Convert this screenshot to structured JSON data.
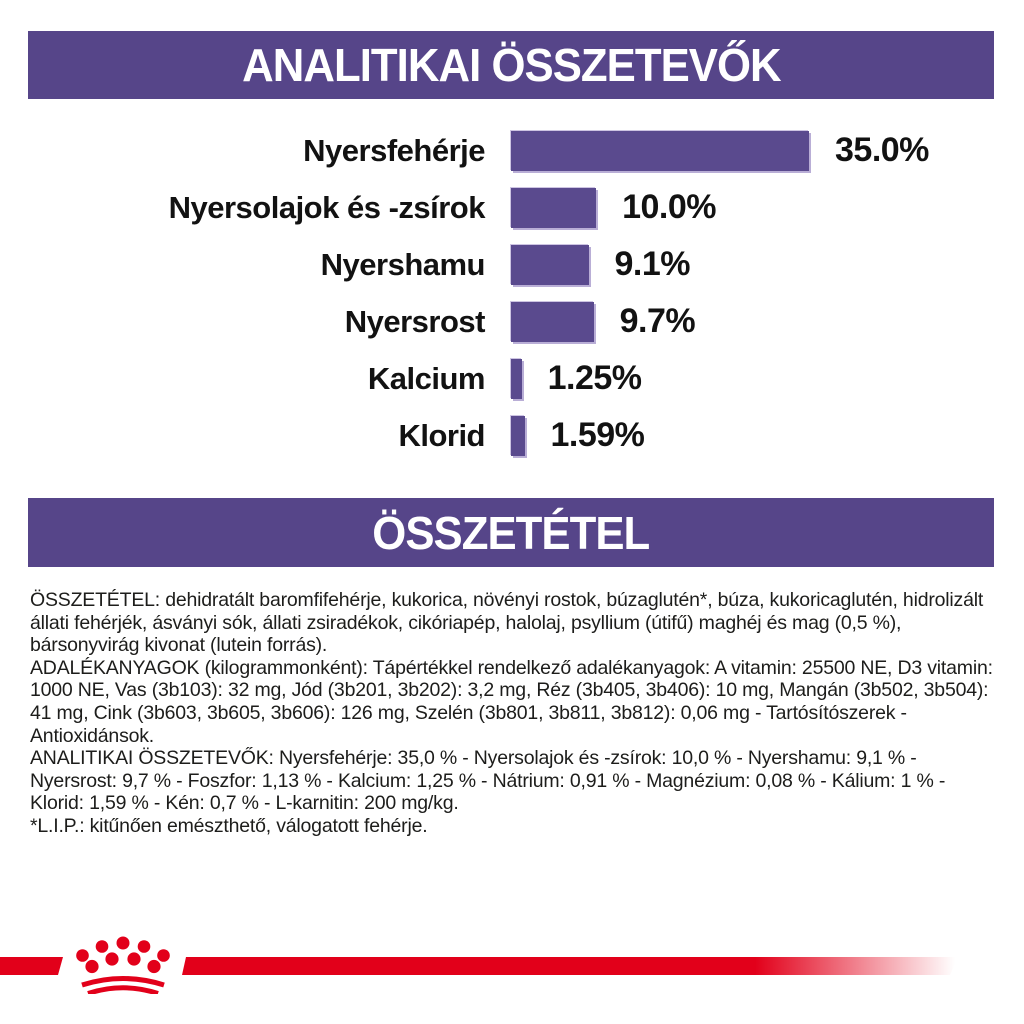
{
  "colors": {
    "banner_purple": "#564589",
    "bar_purple": "#5a4a8e",
    "bar_edge_light": "#b9aed6",
    "brand_red": "#e2001a",
    "body_text": "#1d1d1b",
    "banner_text": "#ffffff",
    "page_bg": "#ffffff"
  },
  "banners": {
    "analytical": "ANALITIKAI ÖSSZETEVŐK",
    "composition": "ÖSSZETÉTEL"
  },
  "chart_data": {
    "type": "bar",
    "orientation": "horizontal",
    "title": "ANALITIKAI ÖSSZETEVŐK",
    "categories": [
      "Nyersfehérje",
      "Nyersolajok és -zsírok",
      "Nyershamu",
      "Nyersrost",
      "Kalcium",
      "Klorid"
    ],
    "values": [
      35.0,
      10.0,
      9.1,
      9.7,
      1.25,
      1.59
    ],
    "value_labels": [
      "35.0%",
      "10.0%",
      "9.1%",
      "9.7%",
      "1.25%",
      "1.59%"
    ],
    "unit": "%",
    "xlim": [
      0,
      35
    ],
    "grid": false,
    "legend": false,
    "value_label_position": "right-of-bar",
    "bar_color": "#5a4a8e",
    "xlabel": "",
    "ylabel": ""
  },
  "composition_section": {
    "paragraphs": [
      "ÖSSZETÉTEL: dehidratált baromfifehérje, kukorica, növényi rostok, búzaglutén*, búza, kukoricaglutén, hidrolizált állati fehérjék, ásványi sók, állati zsiradékok, cikóriapép, halolaj, psyllium (útifű) maghéj és mag (0,5 %), bársonyvirág kivonat (lutein forrás).",
      "ADALÉKANYAGOK (kilogrammonként): Tápértékkel rendelkező adalékanyagok: A vitamin: 25500 NE, D3 vitamin: 1000 NE, Vas (3b103): 32 mg, Jód (3b201, 3b202): 3,2 mg, Réz (3b405, 3b406): 10 mg, Mangán (3b502, 3b504): 41 mg, Cink (3b603, 3b605, 3b606): 126 mg, Szelén (3b801, 3b811, 3b812): 0,06 mg - Tartósítószerek - Antioxidánsok.",
      "ANALITIKAI ÖSSZETEVŐK: Nyersfehérje: 35,0 % - Nyersolajok és -zsírok: 10,0 % - Nyershamu: 9,1 % - Nyersrost: 9,7 % - Foszfor: 1,13 % - Kalcium: 1,25 % - Nátrium: 0,91 % - Magnézium: 0,08 % - Kálium: 1 % - Klorid: 1,59 % - Kén: 0,7 % - L-karnitin: 200 mg/kg.",
      "*L.I.P.: kitűnően emészthető, válogatott fehérje."
    ]
  },
  "footer": {
    "logo_icon": "royal-canin-crown-icon"
  }
}
